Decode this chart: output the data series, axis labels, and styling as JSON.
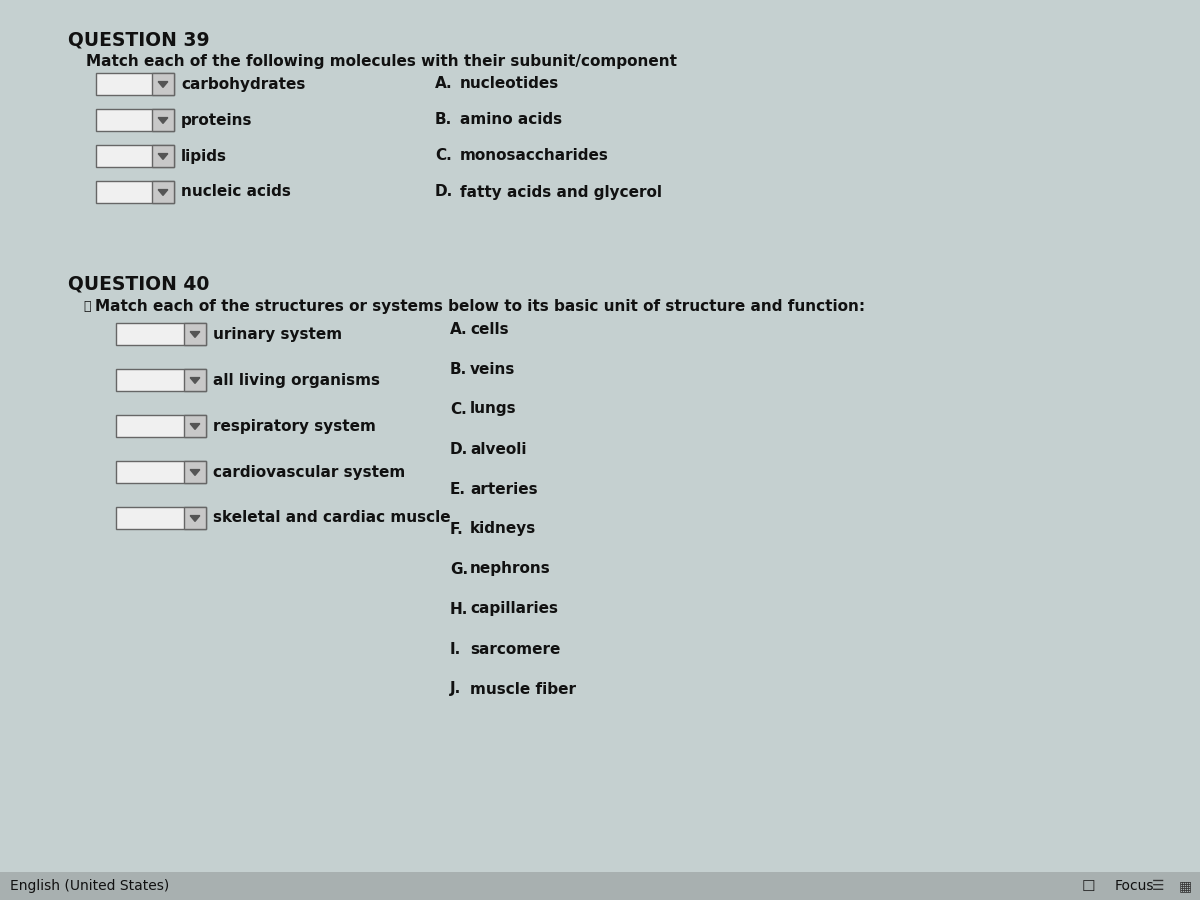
{
  "bg_color": "#c5d0d0",
  "text_color": "#111111",
  "q39_title": "QUESTION 39",
  "q39_subtitle": "Match each of the following molecules with their subunit/component",
  "q39_left_items": [
    "carbohydrates",
    "proteins",
    "lipids",
    "nucleic acids"
  ],
  "q39_right_items_letter": [
    "A.",
    "B.",
    "C.",
    "D."
  ],
  "q39_right_items_text": [
    "nucleotides",
    "amino acids",
    "monosaccharides",
    "fatty acids and glycerol"
  ],
  "q40_title": "QUESTION 40",
  "q40_subtitle": "Match each of the structures or systems below to its basic unit of structure and function:",
  "q40_left_items": [
    "urinary system",
    "all living organisms",
    "respiratory system",
    "cardiovascular system",
    "skeletal and cardiac muscle"
  ],
  "q40_right_items_letter": [
    "A.",
    "B.",
    "C.",
    "D.",
    "E.",
    "F.",
    "G.",
    "H.",
    "I.",
    "J."
  ],
  "q40_right_items_text": [
    "cells",
    "veins",
    "lungs",
    "alveoli",
    "arteries",
    "kidneys",
    "nephrons",
    "capillaries",
    "sarcomere",
    "muscle fiber"
  ],
  "footer_left": "English (United States)",
  "footer_right": "Focus",
  "box_fill": "#f0f0f0",
  "box_edge": "#666666",
  "arrow_fill": "#555555",
  "arrow_tab_fill": "#c8c8c8",
  "footer_bg": "#a8b0b0",
  "focus_box_fill": "#d0d0d0",
  "focus_box_edge": "#888888"
}
